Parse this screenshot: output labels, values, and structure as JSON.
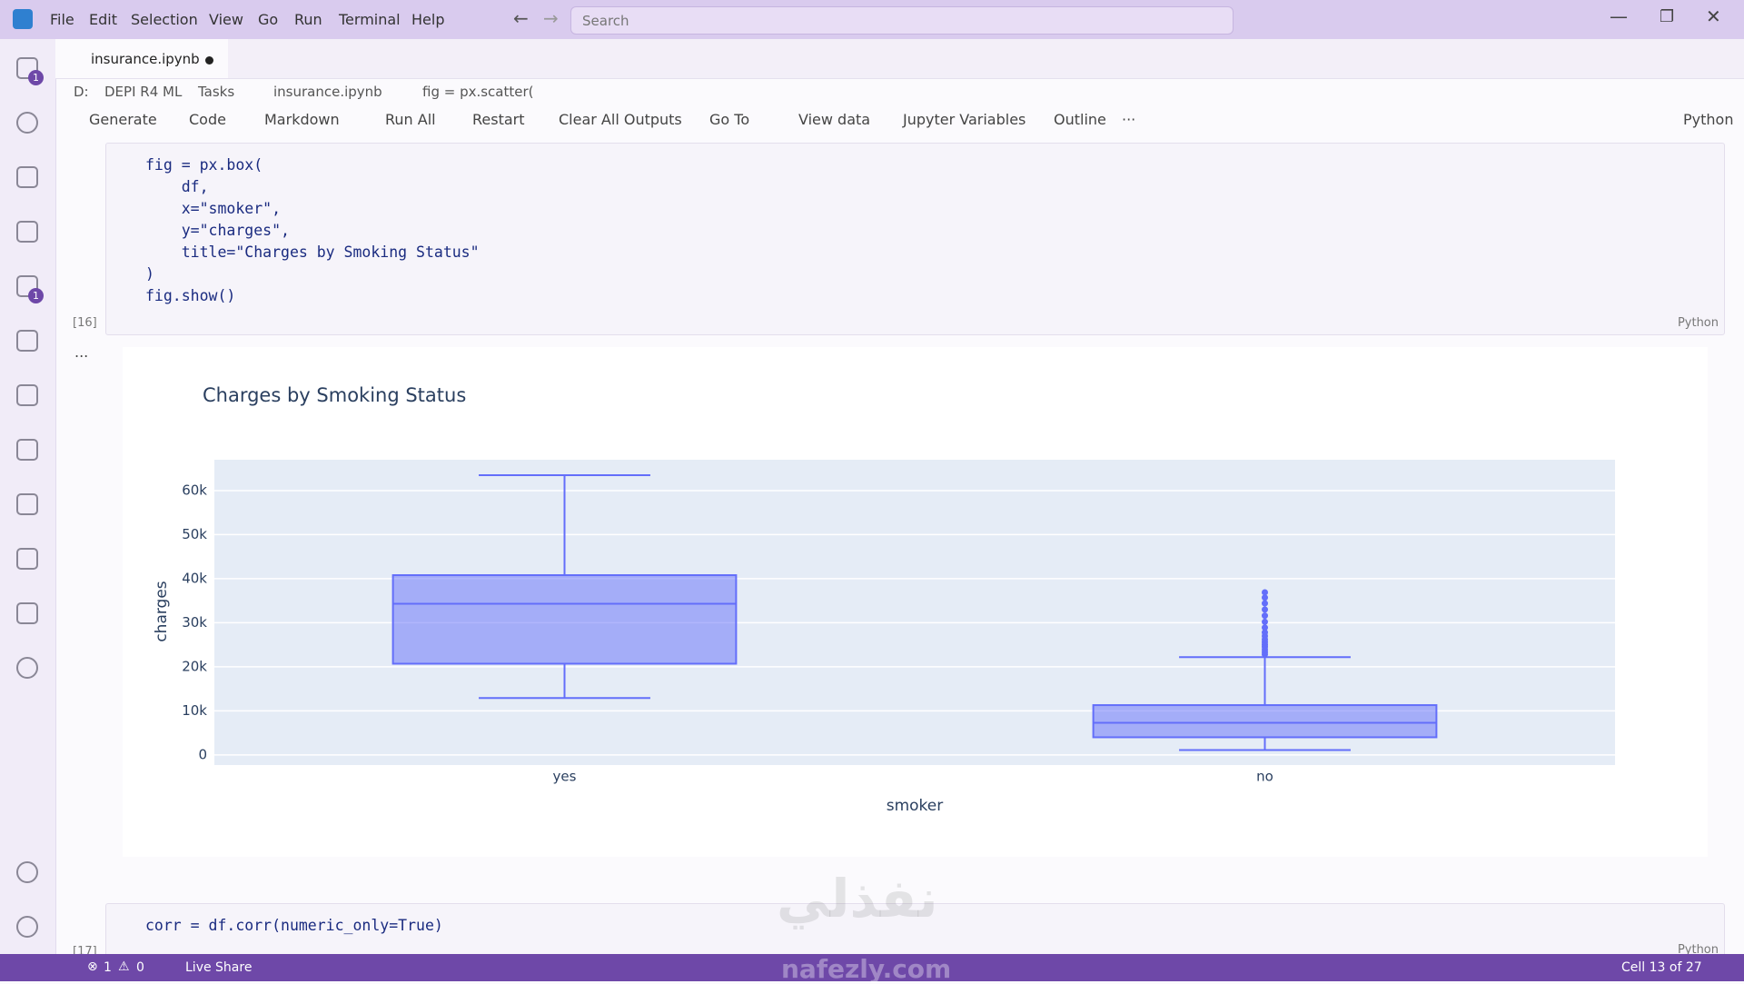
{
  "menu": [
    "File",
    "Edit",
    "Selection",
    "View",
    "Go",
    "Run",
    "Terminal",
    "Help"
  ],
  "search_placeholder": "Search",
  "activity_badges": [
    "1",
    "1"
  ],
  "tab": {
    "title": "insurance.ipynb"
  },
  "breadcrumbs": [
    "D:",
    "DEPI R4 ML",
    "Tasks",
    "insurance.ipynb",
    "fig = px.scatter("
  ],
  "toolbar": {
    "items": [
      "Generate",
      "Code",
      "Markdown",
      "Run All",
      "Restart",
      "Clear All Outputs",
      "Go To",
      "View data",
      "Jupyter Variables",
      "Outline"
    ],
    "more": "···",
    "kernel": "Python"
  },
  "cells": [
    {
      "code": [
        "fig = px.box(",
        "    df,",
        "    x=\"smoker\",",
        "    y=\"charges\",",
        "    title=\"Charges by Smoking Status\"",
        ")",
        "fig.show()"
      ],
      "execution_count": "[16]",
      "language": "Python",
      "output_marker": "..."
    },
    {
      "code": [
        "corr = df.corr(numeric_only=True)"
      ],
      "execution_count": "[17]",
      "language": "Python"
    }
  ],
  "chart_data": {
    "type": "box",
    "title": "Charges by Smoking Status",
    "x_label": "smoker",
    "y_label": "charges",
    "categories": [
      "yes",
      "no"
    ],
    "color": "#636efa",
    "boxes": [
      {
        "lower_fence": 12900,
        "q1": 20700,
        "median": 34300,
        "q3": 40800,
        "upper_fence": 63500,
        "outliers": []
      },
      {
        "lower_fence": 1100,
        "q1": 4000,
        "median": 7300,
        "q3": 11300,
        "upper_fence": 22200,
        "outliers": [
          22800,
          23300,
          23900,
          24500,
          25000,
          25600,
          26200,
          27000,
          27800,
          28900,
          30200,
          31600,
          33000,
          34400,
          35700,
          36900
        ]
      }
    ],
    "ylim": [
      -2300,
      67000
    ],
    "yticks": [
      0,
      {
        "value": 10000,
        "label": "10k"
      },
      {
        "value": 20000,
        "label": "20k"
      },
      {
        "value": 30000,
        "label": "30k"
      },
      {
        "value": 40000,
        "label": "40k"
      },
      {
        "value": 50000,
        "label": "50k"
      },
      {
        "value": 60000,
        "label": "60k"
      }
    ],
    "grid": true
  },
  "status_bar": {
    "errors": "1",
    "warnings": "0",
    "live_share": "Live Share",
    "cell_position": "Cell 13 of 27"
  },
  "watermark": {
    "logo": "نفذلي",
    "site": "nafezly.com"
  }
}
